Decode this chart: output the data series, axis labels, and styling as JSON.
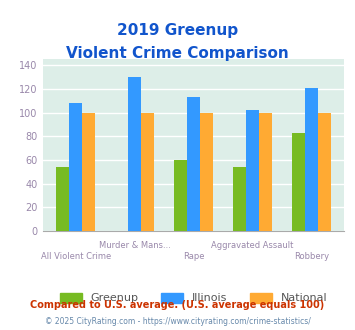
{
  "title_line1": "2019 Greenup",
  "title_line2": "Violent Crime Comparison",
  "categories": [
    "All Violent Crime",
    "Murder & Mans...",
    "Rape",
    "Aggravated Assault",
    "Robbery"
  ],
  "greenup": [
    54,
    0,
    60,
    54,
    83
  ],
  "illinois": [
    108,
    130,
    113,
    102,
    121
  ],
  "national": [
    100,
    100,
    100,
    100,
    100
  ],
  "color_greenup": "#77bb22",
  "color_illinois": "#3399ff",
  "color_national": "#ffaa33",
  "ylim": [
    0,
    145
  ],
  "yticks": [
    0,
    20,
    40,
    60,
    80,
    100,
    120,
    140
  ],
  "bg_color": "#ddeee8",
  "footnote": "Compared to U.S. average. (U.S. average equals 100)",
  "copyright": "© 2025 CityRating.com - https://www.cityrating.com/crime-statistics/",
  "title_color": "#1155cc",
  "footnote_color": "#cc3300",
  "copyright_color": "#6688aa",
  "tick_label_color": "#9988aa",
  "grid_color": "#ffffff",
  "top_cats": [
    "Murder & Mans...",
    "Aggravated Assault"
  ]
}
